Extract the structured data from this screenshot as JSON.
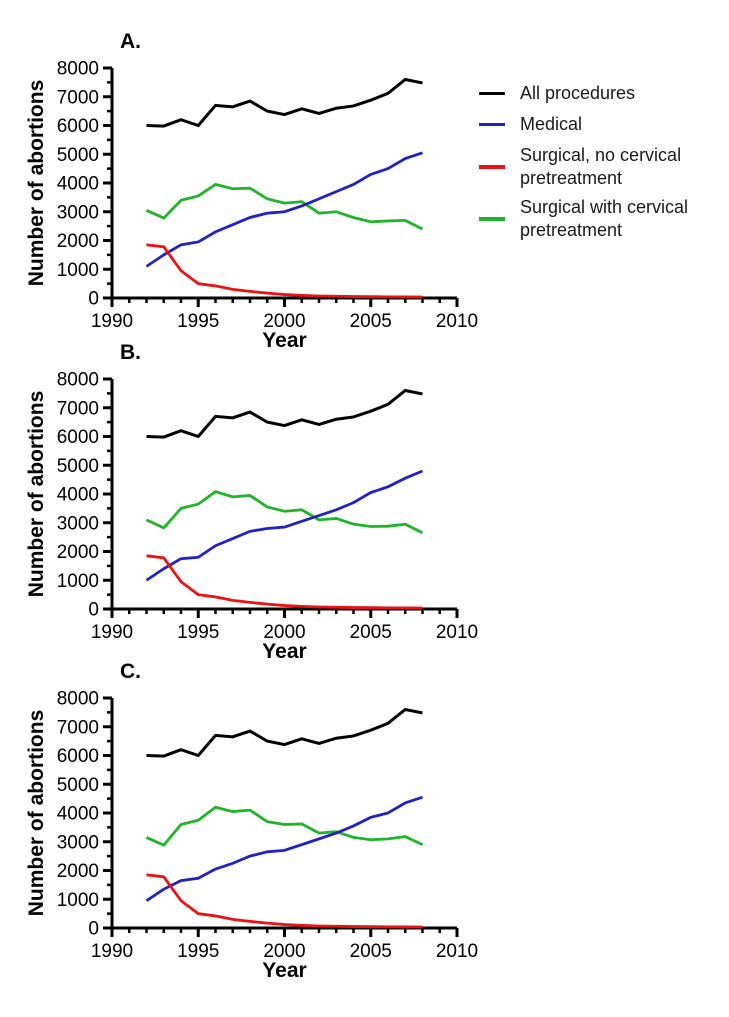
{
  "figure": {
    "panel_labels": [
      "A.",
      "B.",
      "C."
    ],
    "xlabel": "Year",
    "ylabel": "Number of abortions"
  },
  "legend": {
    "items": [
      {
        "label": "All procedures",
        "color": "#000000"
      },
      {
        "label": "Medical",
        "color": "#2222c3"
      },
      {
        "label": "Surgical, no cervical pretreatment",
        "color": "#ee1111"
      },
      {
        "label": "Surgical with cervical pretreatment",
        "color": "#1fb42a"
      }
    ]
  },
  "chart_data": [
    {
      "type": "line",
      "panel_label": "A.",
      "xlabel": "Year",
      "ylabel": "Number of abortions",
      "xlim": [
        1990,
        2010
      ],
      "ylim": [
        0,
        8000
      ],
      "xticks": [
        1990,
        1995,
        2000,
        2005,
        2010
      ],
      "x_minor_step": 1,
      "yticks": [
        0,
        1000,
        2000,
        3000,
        4000,
        5000,
        6000,
        7000,
        8000
      ],
      "y_minor_step": 500,
      "grid": false,
      "x": [
        1992,
        1993,
        1994,
        1995,
        1996,
        1997,
        1998,
        1999,
        2000,
        2001,
        2002,
        2003,
        2004,
        2005,
        2006,
        2007,
        2008
      ],
      "series": [
        {
          "name": "All procedures",
          "color": "#000000",
          "values": [
            6000,
            5980,
            6200,
            6000,
            6700,
            6650,
            6850,
            6500,
            6380,
            6580,
            6420,
            6600,
            6680,
            6880,
            7120,
            7600,
            7480
          ]
        },
        {
          "name": "Medical",
          "color": "#2222c3",
          "values": [
            1100,
            1500,
            1850,
            1950,
            2300,
            2550,
            2800,
            2950,
            3000,
            3200,
            3450,
            3700,
            3950,
            4300,
            4500,
            4850,
            5050
          ]
        },
        {
          "name": "Surgical, no cervical pretreatment",
          "color": "#ee1111",
          "values": [
            1850,
            1780,
            950,
            500,
            420,
            300,
            230,
            170,
            120,
            90,
            70,
            60,
            50,
            45,
            40,
            40,
            35
          ]
        },
        {
          "name": "Surgical with cervical pretreatment",
          "color": "#1fb42a",
          "values": [
            3050,
            2780,
            3400,
            3550,
            3950,
            3800,
            3820,
            3450,
            3300,
            3350,
            2950,
            3000,
            2800,
            2650,
            2680,
            2700,
            2400
          ]
        }
      ]
    },
    {
      "type": "line",
      "panel_label": "B.",
      "xlabel": "Year",
      "ylabel": "Number of abortions",
      "xlim": [
        1990,
        2010
      ],
      "ylim": [
        0,
        8000
      ],
      "xticks": [
        1990,
        1995,
        2000,
        2005,
        2010
      ],
      "x_minor_step": 1,
      "yticks": [
        0,
        1000,
        2000,
        3000,
        4000,
        5000,
        6000,
        7000,
        8000
      ],
      "y_minor_step": 500,
      "grid": false,
      "x": [
        1992,
        1993,
        1994,
        1995,
        1996,
        1997,
        1998,
        1999,
        2000,
        2001,
        2002,
        2003,
        2004,
        2005,
        2006,
        2007,
        2008
      ],
      "series": [
        {
          "name": "All procedures",
          "color": "#000000",
          "values": [
            6000,
            5980,
            6200,
            6000,
            6700,
            6650,
            6850,
            6500,
            6380,
            6580,
            6420,
            6600,
            6680,
            6880,
            7120,
            7600,
            7480
          ]
        },
        {
          "name": "Medical",
          "color": "#2222c3",
          "values": [
            1000,
            1400,
            1750,
            1800,
            2200,
            2450,
            2700,
            2800,
            2850,
            3050,
            3250,
            3450,
            3700,
            4050,
            4250,
            4550,
            4800
          ]
        },
        {
          "name": "Surgical, no cervical pretreatment",
          "color": "#ee1111",
          "values": [
            1850,
            1780,
            950,
            500,
            420,
            300,
            230,
            170,
            120,
            90,
            70,
            60,
            50,
            45,
            40,
            40,
            35
          ]
        },
        {
          "name": "Surgical with cervical pretreatment",
          "color": "#1fb42a",
          "values": [
            3100,
            2820,
            3500,
            3650,
            4080,
            3900,
            3950,
            3550,
            3400,
            3450,
            3100,
            3150,
            2950,
            2870,
            2880,
            2950,
            2650
          ]
        }
      ]
    },
    {
      "type": "line",
      "panel_label": "C.",
      "xlabel": "Year",
      "ylabel": "Number of abortions",
      "xlim": [
        1990,
        2010
      ],
      "ylim": [
        0,
        8000
      ],
      "xticks": [
        1990,
        1995,
        2000,
        2005,
        2010
      ],
      "x_minor_step": 1,
      "yticks": [
        0,
        1000,
        2000,
        3000,
        4000,
        5000,
        6000,
        7000,
        8000
      ],
      "y_minor_step": 500,
      "grid": false,
      "x": [
        1992,
        1993,
        1994,
        1995,
        1996,
        1997,
        1998,
        1999,
        2000,
        2001,
        2002,
        2003,
        2004,
        2005,
        2006,
        2007,
        2008
      ],
      "series": [
        {
          "name": "All procedures",
          "color": "#000000",
          "values": [
            6000,
            5980,
            6200,
            6000,
            6700,
            6650,
            6850,
            6500,
            6380,
            6580,
            6420,
            6600,
            6680,
            6880,
            7120,
            7600,
            7480
          ]
        },
        {
          "name": "Medical",
          "color": "#2222c3",
          "values": [
            950,
            1350,
            1650,
            1730,
            2050,
            2250,
            2500,
            2650,
            2700,
            2900,
            3100,
            3300,
            3550,
            3850,
            4000,
            4350,
            4550
          ]
        },
        {
          "name": "Surgical, no cervical pretreatment",
          "color": "#ee1111",
          "values": [
            1850,
            1780,
            950,
            500,
            420,
            300,
            230,
            170,
            120,
            90,
            70,
            60,
            50,
            45,
            40,
            40,
            35
          ]
        },
        {
          "name": "Surgical with cervical pretreatment",
          "color": "#1fb42a",
          "values": [
            3150,
            2880,
            3600,
            3750,
            4200,
            4050,
            4100,
            3700,
            3600,
            3620,
            3300,
            3350,
            3150,
            3070,
            3100,
            3180,
            2900
          ]
        }
      ]
    }
  ]
}
